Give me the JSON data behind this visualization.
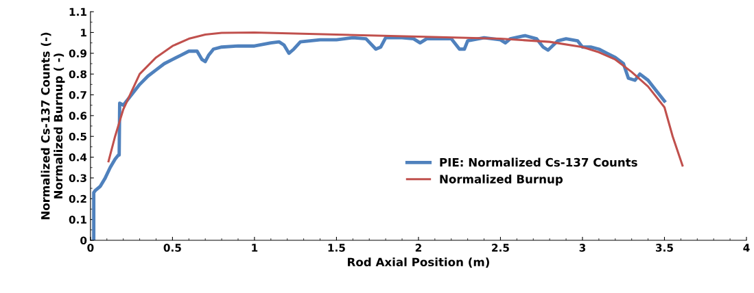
{
  "chart_data": {
    "type": "line",
    "xlabel": "Rod Axial Position (m)",
    "ylabel": "Normalized Cs-137 Counts (-)\nNormalized Burnup ( -)",
    "xlim": [
      0,
      4
    ],
    "xticks": [
      0,
      0.5,
      1,
      1.5,
      2,
      2.5,
      3,
      3.5,
      4
    ],
    "ylim": [
      0,
      1.1
    ],
    "yticks": [
      0,
      0.1,
      0.2,
      0.3,
      0.4,
      0.5,
      0.6,
      0.7,
      0.8,
      0.9,
      1,
      1.1
    ],
    "grid": false,
    "legend": "right",
    "marker": "none",
    "line_style": "solid",
    "series": [
      {
        "name": "PIE: Normalized Cs-137 Counts",
        "color": "#4f81bd",
        "x": [
          0.02,
          0.02,
          0.03,
          0.06,
          0.09,
          0.12,
          0.15,
          0.17,
          0.175,
          0.178,
          0.2,
          0.25,
          0.3,
          0.35,
          0.4,
          0.45,
          0.5,
          0.55,
          0.6,
          0.65,
          0.68,
          0.7,
          0.72,
          0.75,
          0.8,
          0.9,
          1.0,
          1.1,
          1.15,
          1.18,
          1.21,
          1.24,
          1.28,
          1.4,
          1.5,
          1.6,
          1.68,
          1.74,
          1.77,
          1.8,
          1.9,
          1.97,
          2.01,
          2.05,
          2.1,
          2.2,
          2.25,
          2.28,
          2.3,
          2.4,
          2.5,
          2.53,
          2.56,
          2.65,
          2.72,
          2.76,
          2.79,
          2.85,
          2.9,
          2.97,
          3.0,
          3.05,
          3.1,
          3.15,
          3.2,
          3.25,
          3.28,
          3.32,
          3.35,
          3.4,
          3.45,
          3.5
        ],
        "values": [
          0,
          0.23,
          0.24,
          0.26,
          0.3,
          0.35,
          0.39,
          0.41,
          0.41,
          0.66,
          0.65,
          0.7,
          0.75,
          0.79,
          0.82,
          0.85,
          0.87,
          0.89,
          0.91,
          0.91,
          0.87,
          0.86,
          0.89,
          0.92,
          0.93,
          0.935,
          0.935,
          0.95,
          0.955,
          0.94,
          0.9,
          0.92,
          0.955,
          0.965,
          0.965,
          0.975,
          0.97,
          0.92,
          0.93,
          0.975,
          0.975,
          0.97,
          0.95,
          0.97,
          0.97,
          0.97,
          0.92,
          0.92,
          0.96,
          0.975,
          0.965,
          0.95,
          0.97,
          0.985,
          0.97,
          0.93,
          0.915,
          0.96,
          0.97,
          0.96,
          0.93,
          0.93,
          0.92,
          0.9,
          0.88,
          0.85,
          0.78,
          0.77,
          0.8,
          0.77,
          0.72,
          0.67
        ]
      },
      {
        "name": "Normalized Burnup",
        "color": "#c0504d",
        "x": [
          0.11,
          0.15,
          0.2,
          0.3,
          0.4,
          0.5,
          0.6,
          0.7,
          0.8,
          1.0,
          1.5,
          2.0,
          2.5,
          2.8,
          3.0,
          3.1,
          3.2,
          3.3,
          3.4,
          3.5,
          3.55,
          3.61
        ],
        "values": [
          0.38,
          0.5,
          0.63,
          0.8,
          0.88,
          0.935,
          0.97,
          0.99,
          0.998,
          1.0,
          0.99,
          0.98,
          0.97,
          0.955,
          0.93,
          0.905,
          0.87,
          0.81,
          0.74,
          0.64,
          0.5,
          0.36
        ]
      }
    ]
  }
}
